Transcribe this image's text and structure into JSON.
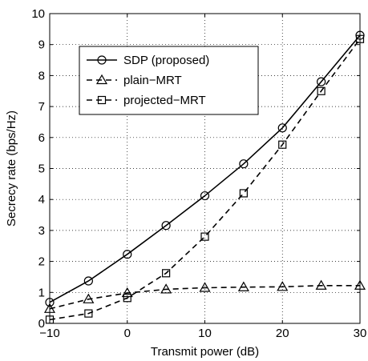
{
  "chart_data": {
    "type": "line",
    "xlabel": "Transmit power (dB)",
    "ylabel": "Secrecy rate (bps/Hz)",
    "xlim": [
      -10,
      30
    ],
    "ylim": [
      0,
      10
    ],
    "xticks": [
      "−10",
      "0",
      "10",
      "20",
      "30"
    ],
    "yticks": [
      "0",
      "1",
      "2",
      "3",
      "4",
      "5",
      "6",
      "7",
      "8",
      "9",
      "10"
    ],
    "grid": true,
    "legend_position": "top-left",
    "x": [
      -10,
      -5,
      0,
      5,
      10,
      15,
      20,
      25,
      30
    ],
    "series": [
      {
        "name": "SDP (proposed)",
        "values": [
          0.68,
          1.37,
          2.23,
          3.16,
          4.12,
          5.15,
          6.31,
          7.8,
          9.3
        ],
        "line_style": "solid",
        "marker": "circle",
        "color": "#000000"
      },
      {
        "name": "plain−MRT",
        "values": [
          0.47,
          0.78,
          0.98,
          1.1,
          1.15,
          1.17,
          1.18,
          1.22,
          1.22
        ],
        "line_style": "dashed",
        "marker": "triangle",
        "color": "#000000"
      },
      {
        "name": "projected−MRT",
        "values": [
          0.12,
          0.32,
          0.82,
          1.62,
          2.8,
          4.2,
          5.77,
          7.5,
          9.18
        ],
        "line_style": "dashed",
        "marker": "square",
        "color": "#000000"
      }
    ]
  }
}
